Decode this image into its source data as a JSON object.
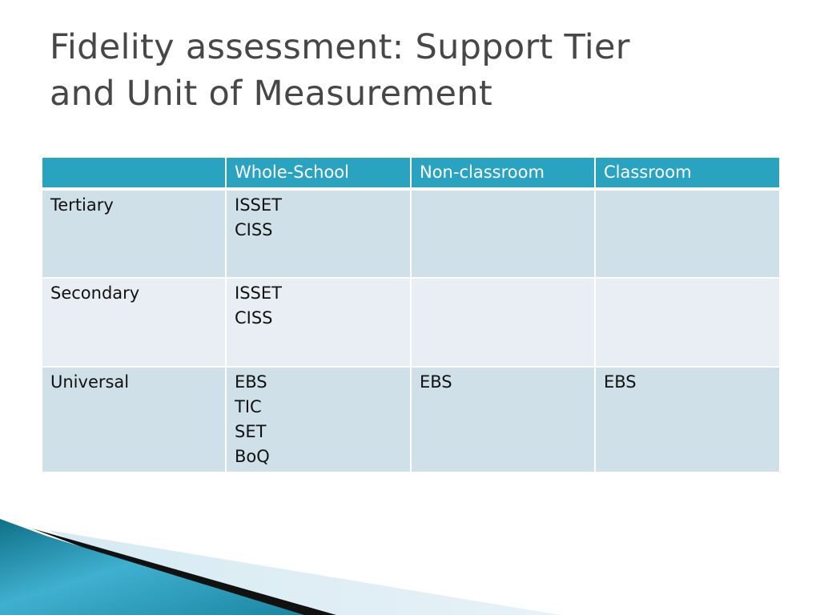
{
  "slide": {
    "title_line1": "Fidelity assessment: Support Tier",
    "title_line2": "and Unit of Measurement"
  },
  "table": {
    "headers": [
      "",
      "Whole-School",
      "Non-classroom",
      "Classroom"
    ],
    "rows": [
      {
        "tier": "Tertiary",
        "whole_school": "ISSET\nCISS",
        "non_classroom": "",
        "classroom": ""
      },
      {
        "tier": "Secondary",
        "whole_school": "ISSET\nCISS",
        "non_classroom": "",
        "classroom": ""
      },
      {
        "tier": "Universal",
        "whole_school": "EBS\nTIC\nSET\nBoQ",
        "non_classroom": "EBS",
        "classroom": "EBS"
      }
    ]
  },
  "colors": {
    "header_fill": "#2aa3c0",
    "row_fill_dark": "#cfe0e8",
    "row_fill_light": "#e8eef3",
    "title_text": "#474747",
    "decor_teal": "#1a8aa8"
  }
}
